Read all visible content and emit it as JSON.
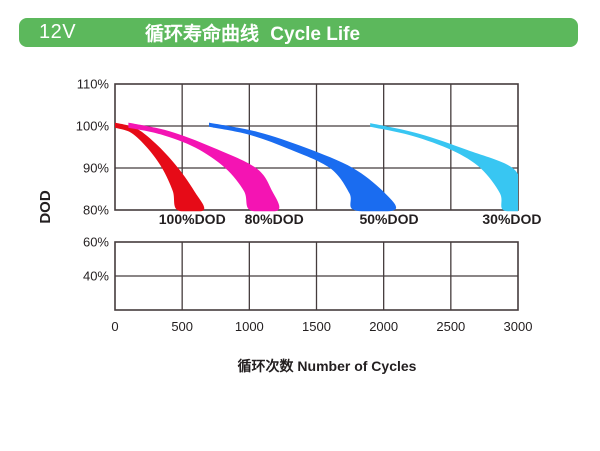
{
  "header": {
    "model": "12V",
    "title_zh": "循环寿命曲线",
    "title_en": "Cycle Life",
    "bg_color": "#5cb85c",
    "text_color": "#ffffff"
  },
  "chart_data": {
    "type": "area",
    "title": "循环寿命曲线 Cycle Life",
    "xlabel": "循环次数 Number of Cycles",
    "ylabel": "DOD",
    "x_max": 3000,
    "x_ticks": [
      0,
      500,
      1000,
      1500,
      2000,
      2500,
      3000
    ],
    "y_axis_upper": {
      "range_pct": [
        80,
        110
      ],
      "ticks": [
        {
          "label": "110%",
          "pct": 110
        },
        {
          "label": "100%",
          "pct": 100
        },
        {
          "label": "90%",
          "pct": 90
        },
        {
          "label": "80%",
          "pct": 80
        }
      ]
    },
    "y_axis_lower": {
      "range_pct": [
        20,
        60
      ],
      "ticks": [
        {
          "label": "60%",
          "pct": 60
        },
        {
          "label": "40%",
          "pct": 40
        }
      ]
    },
    "grid_on": true,
    "grid_color": "#453c3d",
    "text_color": "#231f20",
    "legend_position": "below-axis-annotations",
    "series": [
      {
        "id": "dod-100",
        "name": "100%DOD",
        "color": "#e60b17",
        "label_at_cycles": 575,
        "band_outer": [
          [
            0,
            100.8
          ],
          [
            160,
            99.4
          ],
          [
            320,
            95.3
          ],
          [
            470,
            90
          ],
          [
            590,
            84.5
          ],
          [
            660,
            80
          ]
        ],
        "band_inner": [
          [
            0,
            99.6
          ],
          [
            120,
            98.4
          ],
          [
            240,
            94.8
          ],
          [
            350,
            90
          ],
          [
            430,
            84.5
          ],
          [
            465,
            80
          ]
        ]
      },
      {
        "id": "dod-80",
        "name": "80%DOD",
        "color": "#f414b3",
        "label_at_cycles": 1185,
        "band_outer": [
          [
            100,
            100.8
          ],
          [
            400,
            98.8
          ],
          [
            720,
            95
          ],
          [
            1050,
            90
          ],
          [
            1170,
            84.5
          ],
          [
            1215,
            80
          ]
        ],
        "band_inner": [
          [
            100,
            99.6
          ],
          [
            340,
            98
          ],
          [
            600,
            94.8
          ],
          [
            820,
            90
          ],
          [
            960,
            84.5
          ],
          [
            1005,
            80
          ]
        ]
      },
      {
        "id": "dod-50",
        "name": "50%DOD",
        "color": "#1a6cf0",
        "label_at_cycles": 2040,
        "band_outer": [
          [
            700,
            100.8
          ],
          [
            1060,
            98.6
          ],
          [
            1420,
            94.8
          ],
          [
            1770,
            90
          ],
          [
            2010,
            84
          ],
          [
            2080,
            80
          ]
        ],
        "band_inner": [
          [
            700,
            99.8
          ],
          [
            990,
            98
          ],
          [
            1290,
            94.6
          ],
          [
            1600,
            90
          ],
          [
            1745,
            84
          ],
          [
            1780,
            80
          ]
        ]
      },
      {
        "id": "dod-30",
        "name": "30%DOD",
        "color": "#38c6f2",
        "label_at_cycles": 2955,
        "band_outer": [
          [
            1900,
            100.7
          ],
          [
            2260,
            98.2
          ],
          [
            2620,
            94.3
          ],
          [
            2960,
            90
          ],
          [
            3040,
            84
          ],
          [
            3060,
            80
          ]
        ],
        "band_inner": [
          [
            1900,
            99.8
          ],
          [
            2210,
            97.7
          ],
          [
            2510,
            94.2
          ],
          [
            2720,
            90
          ],
          [
            2865,
            84
          ],
          [
            2890,
            80
          ]
        ]
      }
    ]
  }
}
